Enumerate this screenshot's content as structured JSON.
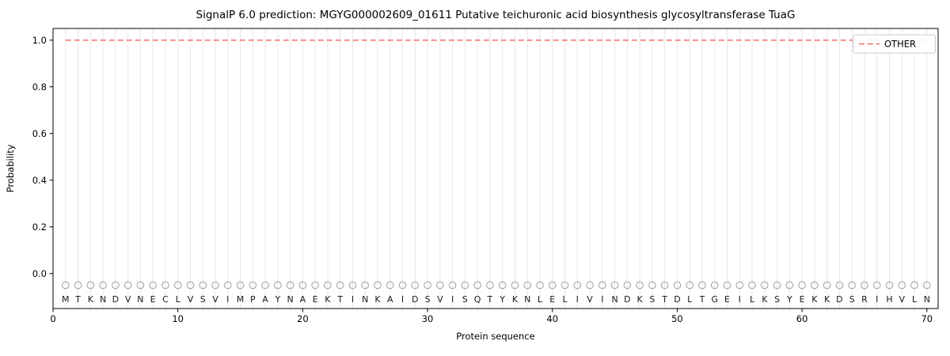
{
  "chart_data": {
    "type": "line",
    "title": "SignalP 6.0 prediction: MGYG000002609_01611 Putative teichuronic acid biosynthesis glycosyltransferase TuaG",
    "xlabel": "Protein sequence",
    "ylabel": "Probability",
    "xticks": [
      0,
      10,
      20,
      30,
      40,
      50,
      60,
      70
    ],
    "yticks": [
      0.0,
      0.2,
      0.4,
      0.6,
      0.8,
      1.0
    ],
    "xlim": [
      0,
      70.9
    ],
    "ylim": [
      -0.15,
      1.05
    ],
    "grid": "vertical gridline at every residue position 1-70",
    "colors": {
      "grid": "#e7e7e7",
      "other_line": "#f26c6c",
      "residue_marker": "#9e9e9e",
      "spine": "#000000"
    },
    "legend": {
      "position": "upper right",
      "entries": [
        {
          "label": "OTHER",
          "color": "#f26c6c",
          "linestyle": "dashed"
        }
      ]
    },
    "series": [
      {
        "name": "OTHER",
        "linestyle": "dashed",
        "color": "#f26c6c",
        "x_start": 1,
        "x_end": 70,
        "y_constant": 1.0,
        "n_points": 70
      }
    ],
    "residue_markers": {
      "shape": "circle",
      "y_constant": -0.05
    },
    "sequence_label_y": -0.11,
    "sequence": [
      "M",
      "T",
      "K",
      "N",
      "D",
      "V",
      "N",
      "E",
      "C",
      "L",
      "V",
      "S",
      "V",
      "I",
      "M",
      "P",
      "A",
      "Y",
      "N",
      "A",
      "E",
      "K",
      "T",
      "I",
      "N",
      "K",
      "A",
      "I",
      "D",
      "S",
      "V",
      "I",
      "S",
      "Q",
      "T",
      "Y",
      "K",
      "N",
      "L",
      "E",
      "L",
      "I",
      "V",
      "I",
      "N",
      "D",
      "K",
      "S",
      "T",
      "D",
      "L",
      "T",
      "G",
      "E",
      "I",
      "L",
      "K",
      "S",
      "Y",
      "E",
      "K",
      "K",
      "D",
      "S",
      "R",
      "I",
      "H",
      "V",
      "L",
      "N"
    ]
  }
}
